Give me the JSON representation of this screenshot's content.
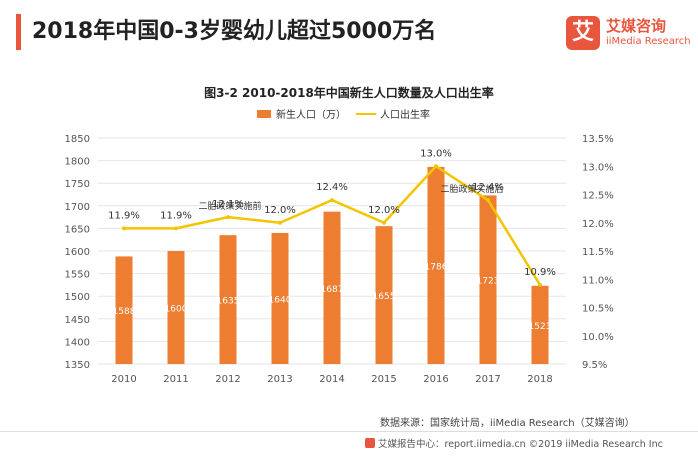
{
  "header": {
    "title": "2018年中国0-3岁婴幼儿超过5000万名",
    "logo_mark": "艾",
    "logo_cn": "艾媒咨询",
    "logo_en": "iiMedia Research"
  },
  "colors": {
    "accent": "#e8563d",
    "bar": "#ed7d31",
    "line": "#f2c500",
    "grid": "#e6e6e6"
  },
  "chart_data": {
    "type": "bar",
    "title": "图3-2 2010-2018年中国新生人口数量及人口出生率",
    "categories": [
      "2010",
      "2011",
      "2012",
      "2013",
      "2014",
      "2015",
      "2016",
      "2017",
      "2018"
    ],
    "series": [
      {
        "name": "新生人口（万）",
        "type": "bar",
        "axis": "left",
        "values": [
          1588,
          1600,
          1635,
          1640,
          1687,
          1655,
          1786,
          1723,
          1523
        ],
        "labels": [
          "1588",
          "1600",
          "1635",
          "1640",
          "1687",
          "1655",
          "1786",
          "1723",
          "1523"
        ]
      },
      {
        "name": "人口出生率",
        "type": "line",
        "axis": "right",
        "values": [
          11.9,
          11.9,
          12.1,
          12.0,
          12.4,
          12.0,
          13.0,
          12.4,
          10.9
        ],
        "labels": [
          "11.9%",
          "11.9%",
          "12.1%",
          "12.0%",
          "12.4%",
          "12.0%",
          "13.0%",
          "12.4%",
          "10.9%"
        ]
      }
    ],
    "y_left": {
      "min": 1350,
      "max": 1850,
      "step": 50,
      "ticks": [
        "1350",
        "1400",
        "1450",
        "1500",
        "1550",
        "1600",
        "1650",
        "1700",
        "1750",
        "1800",
        "1850"
      ]
    },
    "y_right": {
      "min": 9.5,
      "max": 13.5,
      "step": 0.5,
      "ticks": [
        "9.5%",
        "10.0%",
        "10.5%",
        "11.0%",
        "11.5%",
        "12.0%",
        "12.5%",
        "13.0%",
        "13.5%"
      ]
    },
    "legend_position": "top-center",
    "grid": true,
    "annotations": [
      {
        "text": "二胎政策实施前",
        "at": "2012"
      },
      {
        "text": "二胎政策实施后",
        "at": "2017"
      }
    ]
  },
  "source": "数据来源：国家统计局，iiMedia Research（艾媒咨询）",
  "footer": "艾媒报告中心：report.iimedia.cn  ©2019  iiMedia Research Inc"
}
